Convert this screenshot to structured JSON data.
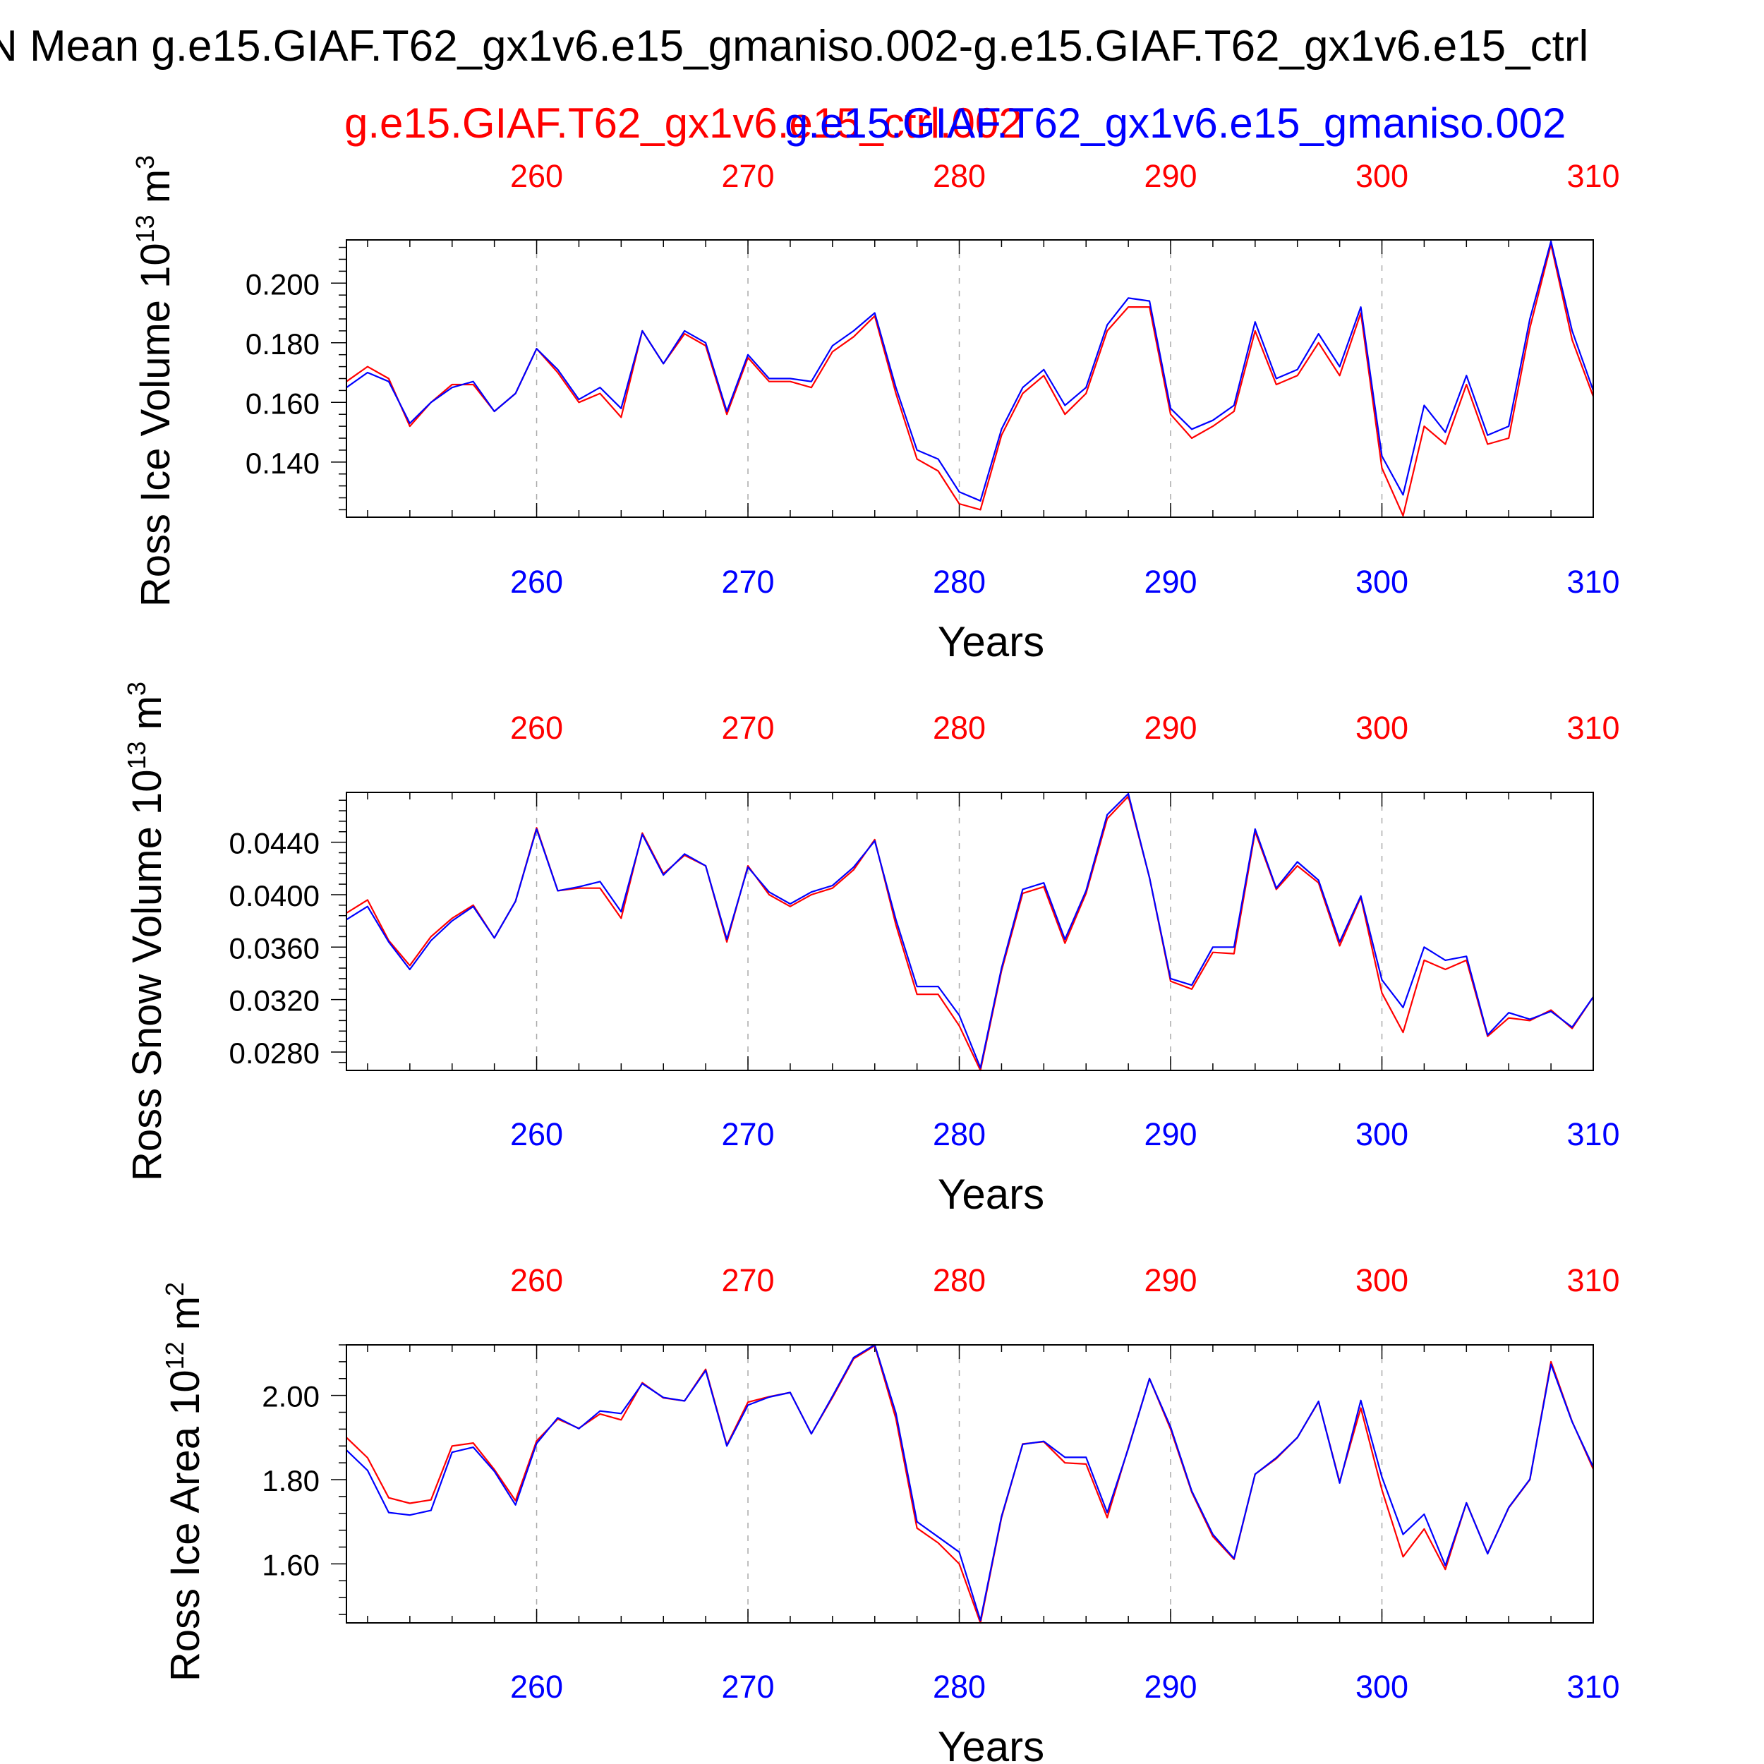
{
  "title": "N Mean g.e15.GIAF.T62_gx1v6.e15_gmaniso.002-g.e15.GIAF.T62_gx1v6.e15_ctrl",
  "legend": {
    "ctrl_name": "g.e15.GIAF.T62_gx1v6.e15_ctrl.002",
    "ctrl_color": "#ff0000",
    "test_name": "g.e15.GIAF.T62_gx1v6.e15_gmaniso.002",
    "test_color": "#0000ff"
  },
  "chart_data": [
    {
      "type": "line",
      "ylabel": "Ross Ice Volume 10",
      "ylabel_exp": "13",
      "ylabel_unit": " m",
      "ylabel_unit_exp": "3",
      "xlabel": "Years",
      "xlim": [
        251,
        310
      ],
      "ylim": [
        0.1215,
        0.2145
      ],
      "yticks": [
        0.14,
        0.16,
        0.18,
        0.2
      ],
      "ytick_labels": [
        "0.140",
        "0.160",
        "0.180",
        "0.200"
      ],
      "xticks": [
        260,
        270,
        280,
        290,
        300,
        310
      ],
      "xtick_labels": [
        "260",
        "270",
        "280",
        "290",
        "300",
        "310"
      ],
      "series": [
        {
          "name": "g.e15.GIAF.T62_gx1v6.e15_ctrl.002",
          "color": "#ff0000",
          "x_start": 251,
          "values": [
            0.167,
            0.172,
            0.168,
            0.152,
            0.16,
            0.166,
            0.166,
            0.157,
            0.163,
            0.178,
            0.17,
            0.16,
            0.163,
            0.155,
            0.184,
            0.173,
            0.183,
            0.179,
            0.156,
            0.175,
            0.167,
            0.167,
            0.165,
            0.177,
            0.182,
            0.189,
            0.163,
            0.141,
            0.137,
            0.126,
            0.124,
            0.149,
            0.163,
            0.169,
            0.156,
            0.163,
            0.184,
            0.192,
            0.192,
            0.156,
            0.148,
            0.152,
            0.157,
            0.184,
            0.166,
            0.169,
            0.18,
            0.169,
            0.19,
            0.138,
            0.122,
            0.152,
            0.146,
            0.166,
            0.146,
            0.148,
            0.185,
            0.213,
            0.181,
            0.162
          ]
        },
        {
          "name": "g.e15.GIAF.T62_gx1v6.e15_gmaniso.002",
          "color": "#0000ff",
          "x_start": 251,
          "values": [
            0.165,
            0.17,
            0.167,
            0.153,
            0.16,
            0.165,
            0.167,
            0.157,
            0.163,
            0.178,
            0.171,
            0.161,
            0.165,
            0.158,
            0.184,
            0.173,
            0.184,
            0.18,
            0.157,
            0.176,
            0.168,
            0.168,
            0.167,
            0.179,
            0.184,
            0.19,
            0.165,
            0.144,
            0.141,
            0.13,
            0.127,
            0.151,
            0.165,
            0.171,
            0.159,
            0.165,
            0.186,
            0.195,
            0.194,
            0.158,
            0.151,
            0.154,
            0.159,
            0.187,
            0.168,
            0.171,
            0.183,
            0.172,
            0.192,
            0.142,
            0.129,
            0.159,
            0.15,
            0.169,
            0.149,
            0.152,
            0.188,
            0.214,
            0.184,
            0.164
          ]
        }
      ]
    },
    {
      "type": "line",
      "ylabel": "Ross Snow Volume 10",
      "ylabel_exp": "13",
      "ylabel_unit": " m",
      "ylabel_unit_exp": "3",
      "xlabel": "Years",
      "xlim": [
        251,
        310
      ],
      "ylim": [
        0.0266,
        0.0478
      ],
      "yticks": [
        0.028,
        0.032,
        0.036,
        0.04,
        0.044
      ],
      "ytick_labels": [
        "0.0280",
        "0.0320",
        "0.0360",
        "0.0400",
        "0.0440"
      ],
      "xticks": [
        260,
        270,
        280,
        290,
        300,
        310
      ],
      "xtick_labels": [
        "260",
        "270",
        "280",
        "290",
        "300",
        "310"
      ],
      "series": [
        {
          "name": "g.e15.GIAF.T62_gx1v6.e15_ctrl.002",
          "color": "#ff0000",
          "x_start": 251,
          "values": [
            0.0386,
            0.0396,
            0.0365,
            0.0346,
            0.0368,
            0.0382,
            0.0392,
            0.0367,
            0.0395,
            0.0451,
            0.0403,
            0.0405,
            0.0405,
            0.0382,
            0.0447,
            0.0416,
            0.043,
            0.0422,
            0.0364,
            0.0422,
            0.04,
            0.0391,
            0.04,
            0.0405,
            0.0419,
            0.0442,
            0.0377,
            0.0324,
            0.0324,
            0.03,
            0.0266,
            0.0342,
            0.0401,
            0.0406,
            0.0363,
            0.0401,
            0.0458,
            0.0475,
            0.0413,
            0.0334,
            0.0328,
            0.0356,
            0.0355,
            0.0448,
            0.0404,
            0.0422,
            0.0409,
            0.0361,
            0.0398,
            0.0325,
            0.0295,
            0.035,
            0.0343,
            0.035,
            0.0292,
            0.0306,
            0.0304,
            0.0312,
            0.0298,
            0.0322
          ]
        },
        {
          "name": "g.e15.GIAF.T62_gx1v6.e15_gmaniso.002",
          "color": "#0000ff",
          "x_start": 251,
          "values": [
            0.0381,
            0.0391,
            0.0364,
            0.0343,
            0.0365,
            0.038,
            0.0391,
            0.0367,
            0.0395,
            0.045,
            0.0403,
            0.0406,
            0.041,
            0.0387,
            0.0446,
            0.0415,
            0.0431,
            0.0422,
            0.0366,
            0.0421,
            0.0402,
            0.0393,
            0.0402,
            0.0407,
            0.0421,
            0.0441,
            0.0381,
            0.033,
            0.033,
            0.0308,
            0.0268,
            0.0344,
            0.0404,
            0.0409,
            0.0366,
            0.0403,
            0.0461,
            0.0477,
            0.0413,
            0.0336,
            0.0331,
            0.036,
            0.036,
            0.045,
            0.0405,
            0.0425,
            0.0411,
            0.0364,
            0.0399,
            0.0335,
            0.0314,
            0.036,
            0.035,
            0.0353,
            0.0293,
            0.031,
            0.0305,
            0.0311,
            0.0299,
            0.0322
          ]
        }
      ]
    },
    {
      "type": "line",
      "ylabel": "Ross Ice Area 10",
      "ylabel_exp": "12",
      "ylabel_unit": " m",
      "ylabel_unit_exp": "2",
      "xlabel": "Years",
      "xlim": [
        251,
        310
      ],
      "ylim": [
        1.46,
        2.12
      ],
      "yticks": [
        1.6,
        1.8,
        2.0
      ],
      "ytick_labels": [
        "1.60",
        "1.80",
        "2.00"
      ],
      "xticks": [
        260,
        270,
        280,
        290,
        300,
        310
      ],
      "xtick_labels": [
        "260",
        "270",
        "280",
        "290",
        "300",
        "310"
      ],
      "series": [
        {
          "name": "g.e15.GIAF.T62_gx1v6.e15_ctrl.002",
          "color": "#ff0000",
          "x_start": 251,
          "values": [
            1.9,
            1.852,
            1.757,
            1.744,
            1.752,
            1.88,
            1.887,
            1.824,
            1.75,
            1.892,
            1.944,
            1.922,
            1.956,
            1.942,
            2.03,
            1.994,
            1.987,
            2.062,
            1.882,
            1.984,
            1.997,
            2.007,
            1.909,
            1.995,
            2.087,
            2.118,
            1.945,
            1.685,
            1.65,
            1.6,
            1.46,
            1.71,
            1.885,
            1.89,
            1.84,
            1.837,
            1.71,
            1.876,
            2.04,
            1.92,
            1.77,
            1.665,
            1.611,
            1.813,
            1.85,
            1.9,
            1.985,
            1.795,
            1.97,
            1.776,
            1.617,
            1.683,
            1.587,
            1.745,
            1.625,
            1.733,
            1.8,
            2.08,
            1.938,
            1.825
          ]
        },
        {
          "name": "g.e15.GIAF.T62_gx1v6.e15_gmaniso.002",
          "color": "#0000ff",
          "x_start": 251,
          "values": [
            1.87,
            1.822,
            1.722,
            1.716,
            1.727,
            1.865,
            1.877,
            1.82,
            1.74,
            1.886,
            1.947,
            1.921,
            1.963,
            1.957,
            2.028,
            1.995,
            1.987,
            2.059,
            1.88,
            1.977,
            1.996,
            2.007,
            1.909,
            1.998,
            2.09,
            2.12,
            1.958,
            1.7,
            1.664,
            1.628,
            1.466,
            1.713,
            1.884,
            1.891,
            1.853,
            1.853,
            1.722,
            1.874,
            2.04,
            1.925,
            1.773,
            1.67,
            1.613,
            1.813,
            1.852,
            1.9,
            1.986,
            1.792,
            1.988,
            1.806,
            1.67,
            1.718,
            1.596,
            1.745,
            1.624,
            1.734,
            1.801,
            2.074,
            1.937,
            1.83
          ]
        }
      ]
    }
  ]
}
